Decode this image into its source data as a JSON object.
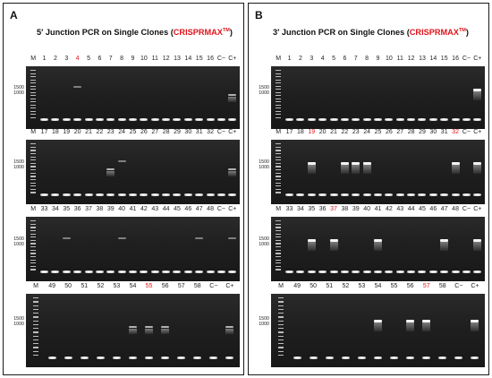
{
  "panels": [
    {
      "letter": "A",
      "title_prefix": "5′ Junction PCR on Single Clones (",
      "title_red": "CRISPRMAX",
      "title_sup": "TM",
      "title_suffix": ")",
      "marker_sizes": [
        "1500",
        "1000"
      ],
      "gels": [
        {
          "labels": [
            "M",
            "1",
            "2",
            "3",
            "4",
            "5",
            "6",
            "7",
            "8",
            "9",
            "10",
            "11",
            "12",
            "13",
            "14",
            "15",
            "16",
            "C−",
            "C+"
          ],
          "highlight": [
            "4"
          ],
          "bands": [
            {
              "lane": "4",
              "strength": "weak"
            },
            {
              "lane": "C+",
              "strength": "mid"
            }
          ]
        },
        {
          "labels": [
            "M",
            "17",
            "18",
            "19",
            "20",
            "21",
            "22",
            "23",
            "24",
            "25",
            "26",
            "27",
            "28",
            "29",
            "30",
            "31",
            "32",
            "C−",
            "C+"
          ],
          "highlight": [],
          "bands": [
            {
              "lane": "23",
              "strength": "mid"
            },
            {
              "lane": "24",
              "strength": "weak"
            },
            {
              "lane": "C+",
              "strength": "mid"
            }
          ]
        },
        {
          "labels": [
            "M",
            "33",
            "34",
            "35",
            "36",
            "37",
            "38",
            "39",
            "40",
            "41",
            "42",
            "43",
            "44",
            "45",
            "46",
            "47",
            "48",
            "C−",
            "C+"
          ],
          "highlight": [],
          "bands": [
            {
              "lane": "35",
              "strength": "weak"
            },
            {
              "lane": "40",
              "strength": "weak"
            },
            {
              "lane": "47",
              "strength": "weak"
            },
            {
              "lane": "C+",
              "strength": "weak"
            }
          ]
        },
        {
          "labels": [
            "M",
            "49",
            "50",
            "51",
            "52",
            "53",
            "54",
            "55",
            "56",
            "57",
            "58",
            "C−",
            "C+"
          ],
          "highlight": [
            "55"
          ],
          "bands": [
            {
              "lane": "54",
              "strength": "mid"
            },
            {
              "lane": "55",
              "strength": "mid"
            },
            {
              "lane": "56",
              "strength": "mid"
            },
            {
              "lane": "C+",
              "strength": "mid"
            }
          ]
        }
      ]
    },
    {
      "letter": "B",
      "title_prefix": "3′ Junction PCR on Single Clones (",
      "title_red": "CRISPRMAX",
      "title_sup": "TM",
      "title_suffix": ")",
      "marker_sizes": [
        "1500",
        "1000"
      ],
      "gels": [
        {
          "labels": [
            "M",
            "1",
            "2",
            "3",
            "4",
            "5",
            "6",
            "7",
            "8",
            "9",
            "10",
            "11",
            "12",
            "13",
            "14",
            "15",
            "16",
            "C−",
            "C+"
          ],
          "highlight": [],
          "bands": [
            {
              "lane": "C+",
              "strength": "strong"
            }
          ]
        },
        {
          "labels": [
            "M",
            "17",
            "18",
            "19",
            "20",
            "21",
            "22",
            "23",
            "24",
            "25",
            "26",
            "27",
            "28",
            "29",
            "30",
            "31",
            "32",
            "C−",
            "C+"
          ],
          "highlight": [
            "19",
            "32"
          ],
          "bands": [
            {
              "lane": "19",
              "strength": "strong"
            },
            {
              "lane": "22",
              "strength": "strong"
            },
            {
              "lane": "23",
              "strength": "strong"
            },
            {
              "lane": "24",
              "strength": "strong"
            },
            {
              "lane": "32",
              "strength": "strong"
            },
            {
              "lane": "C+",
              "strength": "strong"
            }
          ]
        },
        {
          "labels": [
            "M",
            "33",
            "34",
            "35",
            "36",
            "37",
            "38",
            "39",
            "40",
            "41",
            "42",
            "43",
            "44",
            "45",
            "46",
            "47",
            "48",
            "C−",
            "C+"
          ],
          "highlight": [
            "37"
          ],
          "bands": [
            {
              "lane": "35",
              "strength": "strong"
            },
            {
              "lane": "37",
              "strength": "strong"
            },
            {
              "lane": "41",
              "strength": "strong"
            },
            {
              "lane": "47",
              "strength": "strong"
            },
            {
              "lane": "C+",
              "strength": "strong"
            }
          ]
        },
        {
          "labels": [
            "M",
            "49",
            "50",
            "51",
            "52",
            "53",
            "54",
            "55",
            "56",
            "57",
            "58",
            "C−",
            "C+"
          ],
          "highlight": [
            "57"
          ],
          "bands": [
            {
              "lane": "54",
              "strength": "strong"
            },
            {
              "lane": "56",
              "strength": "strong"
            },
            {
              "lane": "57",
              "strength": "strong"
            },
            {
              "lane": "C+",
              "strength": "strong"
            }
          ]
        }
      ]
    }
  ]
}
